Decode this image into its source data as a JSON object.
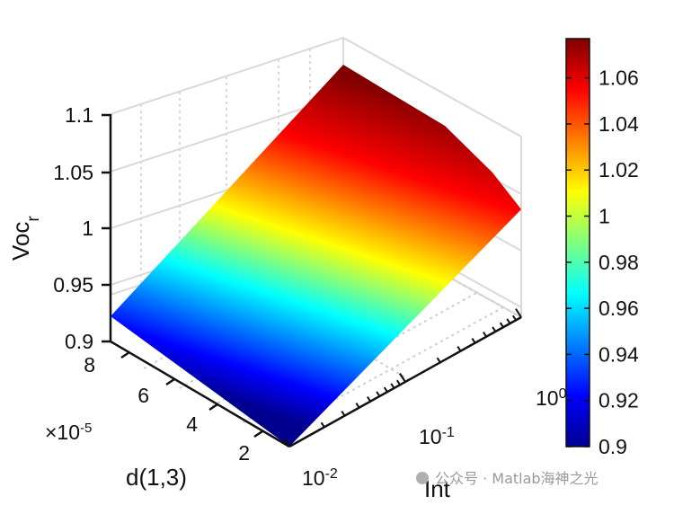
{
  "chart_data": {
    "type": "surface",
    "zlabel_main": "Voc",
    "zlabel_sub": "r",
    "xlabel": "Int",
    "ylabel": "d(1,3)",
    "y_exponent": "×10",
    "y_exponent_power": "-5",
    "x_scale": "log",
    "x_ticks": [
      {
        "value": 0.01,
        "base": "10",
        "power": "-2"
      },
      {
        "value": 0.1,
        "base": "10",
        "power": "-1"
      },
      {
        "value": 1,
        "base": "10",
        "power": "0"
      }
    ],
    "y_ticks": [
      {
        "value": 2,
        "label": "2"
      },
      {
        "value": 4,
        "label": "4"
      },
      {
        "value": 6,
        "label": "6"
      },
      {
        "value": 8,
        "label": "8"
      }
    ],
    "z_ticks": [
      {
        "value": 0.9,
        "label": "0.9"
      },
      {
        "value": 0.95,
        "label": "0.95"
      },
      {
        "value": 1,
        "label": "1"
      },
      {
        "value": 1.05,
        "label": "1.05"
      },
      {
        "value": 1.1,
        "label": "1.1"
      }
    ],
    "xlim": [
      0.01,
      1
    ],
    "ylim": [
      1,
      8
    ],
    "zlim": [
      0.9,
      1.1
    ],
    "colormap": "jet",
    "colorbar": {
      "limits": [
        0.9,
        1.077
      ],
      "ticks": [
        "0.9",
        "0.92",
        "0.94",
        "0.96",
        "0.98",
        "1",
        "1.02",
        "1.04",
        "1.06"
      ]
    },
    "surface": {
      "corners": [
        {
          "int": 0.01,
          "d": 1,
          "voc": 0.903
        },
        {
          "int": 0.01,
          "d": 8,
          "voc": 0.922
        },
        {
          "int": 1,
          "d": 8,
          "voc": 1.077
        },
        {
          "int": 1,
          "d": 1,
          "voc": 1.0
        }
      ],
      "description_only": false
    },
    "grid": true
  },
  "watermark": "公众号 · Matlab海神之光"
}
